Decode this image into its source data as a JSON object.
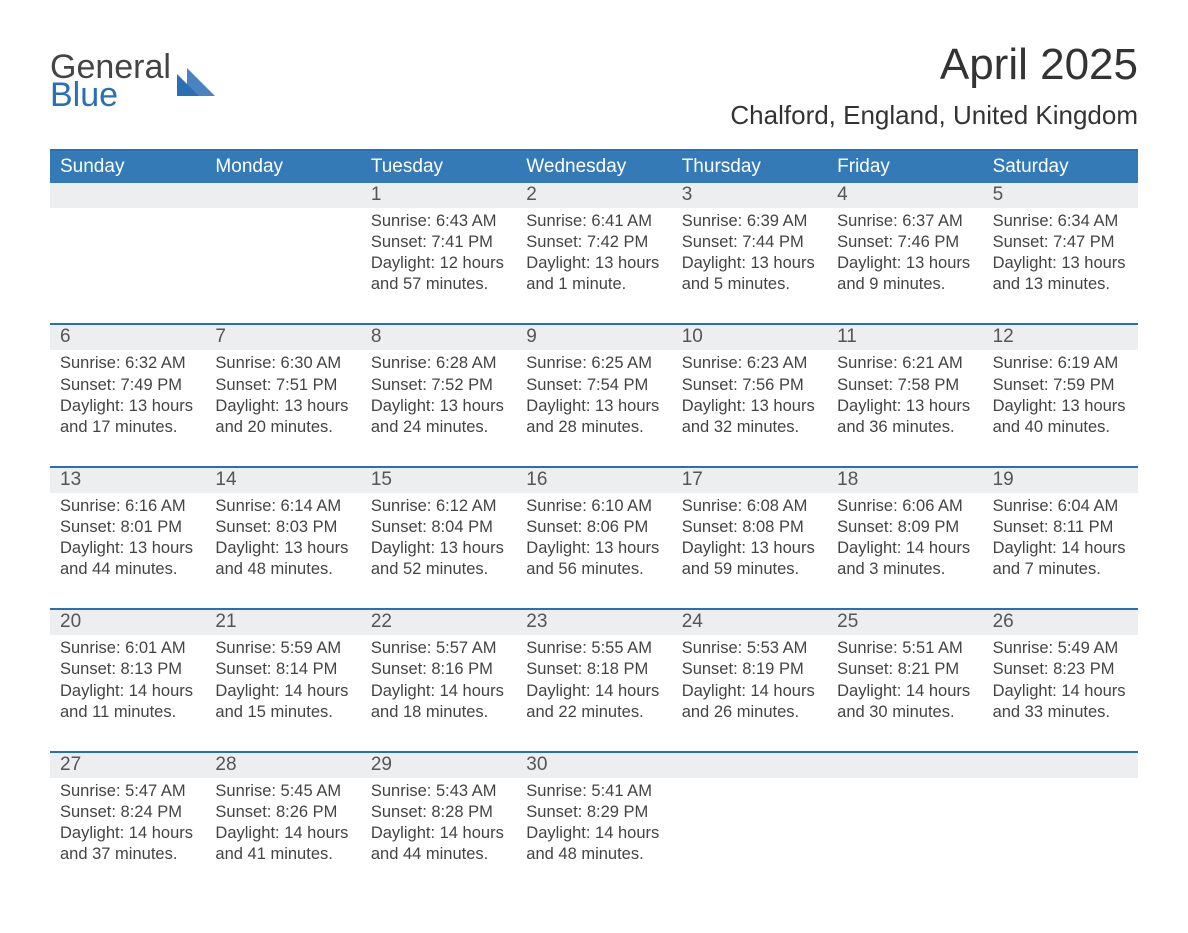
{
  "brand": {
    "line1": "General",
    "line2": "Blue"
  },
  "title": "April 2025",
  "location": "Chalford, England, United Kingdom",
  "colors": {
    "header_bg": "#337ab7",
    "header_text": "#ffffff",
    "accent_border": "#2a6fb5",
    "daynum_bg": "#eceeef",
    "body_text": "#444444",
    "page_bg": "#ffffff"
  },
  "weekdays": [
    "Sunday",
    "Monday",
    "Tuesday",
    "Wednesday",
    "Thursday",
    "Friday",
    "Saturday"
  ],
  "labels": {
    "sunrise": "Sunrise:",
    "sunset": "Sunset:",
    "daylight": "Daylight:"
  },
  "weeks": [
    [
      null,
      null,
      {
        "n": "1",
        "sunrise": "6:43 AM",
        "sunset": "7:41 PM",
        "daylight": "12 hours and 57 minutes."
      },
      {
        "n": "2",
        "sunrise": "6:41 AM",
        "sunset": "7:42 PM",
        "daylight": "13 hours and 1 minute."
      },
      {
        "n": "3",
        "sunrise": "6:39 AM",
        "sunset": "7:44 PM",
        "daylight": "13 hours and 5 minutes."
      },
      {
        "n": "4",
        "sunrise": "6:37 AM",
        "sunset": "7:46 PM",
        "daylight": "13 hours and 9 minutes."
      },
      {
        "n": "5",
        "sunrise": "6:34 AM",
        "sunset": "7:47 PM",
        "daylight": "13 hours and 13 minutes."
      }
    ],
    [
      {
        "n": "6",
        "sunrise": "6:32 AM",
        "sunset": "7:49 PM",
        "daylight": "13 hours and 17 minutes."
      },
      {
        "n": "7",
        "sunrise": "6:30 AM",
        "sunset": "7:51 PM",
        "daylight": "13 hours and 20 minutes."
      },
      {
        "n": "8",
        "sunrise": "6:28 AM",
        "sunset": "7:52 PM",
        "daylight": "13 hours and 24 minutes."
      },
      {
        "n": "9",
        "sunrise": "6:25 AM",
        "sunset": "7:54 PM",
        "daylight": "13 hours and 28 minutes."
      },
      {
        "n": "10",
        "sunrise": "6:23 AM",
        "sunset": "7:56 PM",
        "daylight": "13 hours and 32 minutes."
      },
      {
        "n": "11",
        "sunrise": "6:21 AM",
        "sunset": "7:58 PM",
        "daylight": "13 hours and 36 minutes."
      },
      {
        "n": "12",
        "sunrise": "6:19 AM",
        "sunset": "7:59 PM",
        "daylight": "13 hours and 40 minutes."
      }
    ],
    [
      {
        "n": "13",
        "sunrise": "6:16 AM",
        "sunset": "8:01 PM",
        "daylight": "13 hours and 44 minutes."
      },
      {
        "n": "14",
        "sunrise": "6:14 AM",
        "sunset": "8:03 PM",
        "daylight": "13 hours and 48 minutes."
      },
      {
        "n": "15",
        "sunrise": "6:12 AM",
        "sunset": "8:04 PM",
        "daylight": "13 hours and 52 minutes."
      },
      {
        "n": "16",
        "sunrise": "6:10 AM",
        "sunset": "8:06 PM",
        "daylight": "13 hours and 56 minutes."
      },
      {
        "n": "17",
        "sunrise": "6:08 AM",
        "sunset": "8:08 PM",
        "daylight": "13 hours and 59 minutes."
      },
      {
        "n": "18",
        "sunrise": "6:06 AM",
        "sunset": "8:09 PM",
        "daylight": "14 hours and 3 minutes."
      },
      {
        "n": "19",
        "sunrise": "6:04 AM",
        "sunset": "8:11 PM",
        "daylight": "14 hours and 7 minutes."
      }
    ],
    [
      {
        "n": "20",
        "sunrise": "6:01 AM",
        "sunset": "8:13 PM",
        "daylight": "14 hours and 11 minutes."
      },
      {
        "n": "21",
        "sunrise": "5:59 AM",
        "sunset": "8:14 PM",
        "daylight": "14 hours and 15 minutes."
      },
      {
        "n": "22",
        "sunrise": "5:57 AM",
        "sunset": "8:16 PM",
        "daylight": "14 hours and 18 minutes."
      },
      {
        "n": "23",
        "sunrise": "5:55 AM",
        "sunset": "8:18 PM",
        "daylight": "14 hours and 22 minutes."
      },
      {
        "n": "24",
        "sunrise": "5:53 AM",
        "sunset": "8:19 PM",
        "daylight": "14 hours and 26 minutes."
      },
      {
        "n": "25",
        "sunrise": "5:51 AM",
        "sunset": "8:21 PM",
        "daylight": "14 hours and 30 minutes."
      },
      {
        "n": "26",
        "sunrise": "5:49 AM",
        "sunset": "8:23 PM",
        "daylight": "14 hours and 33 minutes."
      }
    ],
    [
      {
        "n": "27",
        "sunrise": "5:47 AM",
        "sunset": "8:24 PM",
        "daylight": "14 hours and 37 minutes."
      },
      {
        "n": "28",
        "sunrise": "5:45 AM",
        "sunset": "8:26 PM",
        "daylight": "14 hours and 41 minutes."
      },
      {
        "n": "29",
        "sunrise": "5:43 AM",
        "sunset": "8:28 PM",
        "daylight": "14 hours and 44 minutes."
      },
      {
        "n": "30",
        "sunrise": "5:41 AM",
        "sunset": "8:29 PM",
        "daylight": "14 hours and 48 minutes."
      },
      null,
      null,
      null
    ]
  ]
}
